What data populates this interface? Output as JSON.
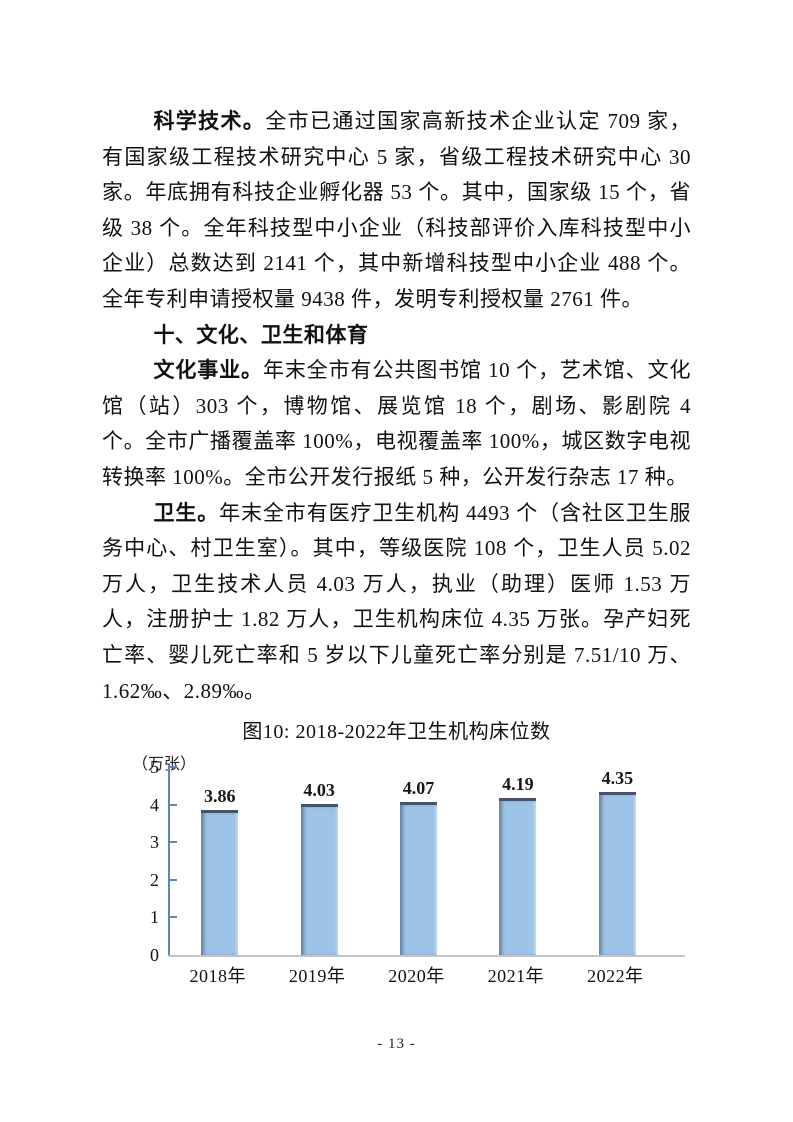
{
  "page": {
    "footer": "- 13 -"
  },
  "sections": {
    "science": {
      "lead": "科学技术。",
      "body": "全市已通过国家高新技术企业认定 709 家，有国家级工程技术研究中心 5 家，省级工程技术研究中心 30 家。年底拥有科技企业孵化器 53 个。其中，国家级 15 个，省级 38 个。全年科技型中小企业（科技部评价入库科技型中小企业）总数达到 2141 个，其中新增科技型中小企业 488 个。全年专利申请授权量 9438 件，发明专利授权量 2761 件。"
    },
    "section_heading": "十、文化、卫生和体育",
    "culture": {
      "lead": "文化事业。",
      "body": "年末全市有公共图书馆 10 个，艺术馆、文化馆（站）303 个，博物馆、展览馆 18 个，剧场、影剧院 4 个。全市广播覆盖率 100%，电视覆盖率 100%，城区数字电视转换率 100%。全市公开发行报纸 5 种，公开发行杂志 17 种。"
    },
    "health": {
      "lead": "卫生。",
      "body": "年末全市有医疗卫生机构 4493 个（含社区卫生服务中心、村卫生室）。其中，等级医院 108 个，卫生人员 5.02 万人，卫生技术人员 4.03 万人，执业（助理）医师 1.53 万人，注册护士 1.82 万人，卫生机构床位 4.35 万张。孕产妇死亡率、婴儿死亡率和 5 岁以下儿童死亡率分别是 7.51/10 万、1.62‰、2.89‰。"
    }
  },
  "chart_data": {
    "type": "bar",
    "title": "图10: 2018-2022年卫生机构床位数",
    "unit_label": "（万张）",
    "categories": [
      "2018年",
      "2019年",
      "2020年",
      "2021年",
      "2022年"
    ],
    "values": [
      3.86,
      4.03,
      4.07,
      4.19,
      4.35
    ],
    "value_labels": [
      "3.86",
      "4.03",
      "4.07",
      "4.19",
      "4.35"
    ],
    "xlabel": "",
    "ylabel": "万张",
    "ylim": [
      0,
      5
    ],
    "yticks": [
      0,
      1,
      2,
      3,
      4,
      5
    ],
    "grid": false,
    "legend": "none",
    "bar_color": "#9DC3E6",
    "bar_top_color": "#44546A",
    "axis_color": "#5B87B8",
    "baseline_color": "#C3C3C3"
  }
}
